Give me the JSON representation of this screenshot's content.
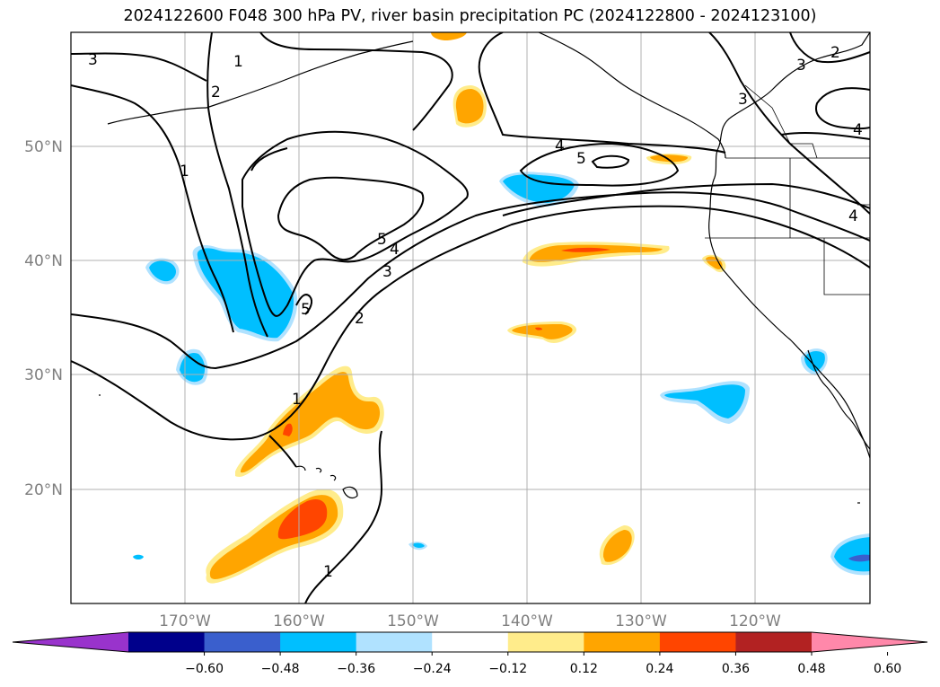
{
  "title": "2024122600 F048 300 hPa PV, river basin precipitation PC (2024122800 - 2024123100)",
  "map": {
    "projection": "plate-carree",
    "lon_range": [
      -180,
      -110
    ],
    "lat_range": [
      10,
      60
    ],
    "gridlines": true,
    "lon_ticks": [
      {
        "value": -170,
        "label": "170°W"
      },
      {
        "value": -160,
        "label": "160°W"
      },
      {
        "value": -150,
        "label": "150°W"
      },
      {
        "value": -140,
        "label": "140°W"
      },
      {
        "value": -130,
        "label": "130°W"
      },
      {
        "value": -120,
        "label": "120°W"
      }
    ],
    "lat_ticks": [
      {
        "value": 50,
        "label": "50°N"
      },
      {
        "value": 40,
        "label": "40°N"
      },
      {
        "value": 30,
        "label": "30°N"
      },
      {
        "value": 20,
        "label": "20°N"
      }
    ]
  },
  "pv_contour_labels": [
    "1",
    "2",
    "3",
    "4",
    "5"
  ],
  "colorbar": {
    "extend": "both",
    "colors": [
      "#9933cc",
      "#00008b",
      "#3a5fcd",
      "#00bfff",
      "#b0e2ff",
      "#ffffff",
      "#ffec8b",
      "#ffa500",
      "#ff4500",
      "#b22222",
      "#ff88aa"
    ],
    "tick_labels": [
      "−0.60",
      "−0.48",
      "−0.36",
      "−0.24",
      "−0.12",
      "0.12",
      "0.24",
      "0.36",
      "0.48",
      "0.60"
    ]
  },
  "colors": {
    "contour": "#000000",
    "coastline": "#000000",
    "grid": "#b0b0b0",
    "positive_light": "#ffec8b",
    "positive": "#ffa500",
    "positive_strong": "#ff4500",
    "negative_light": "#b0e2ff",
    "negative": "#00bfff",
    "negative_strong": "#3a5fcd"
  }
}
